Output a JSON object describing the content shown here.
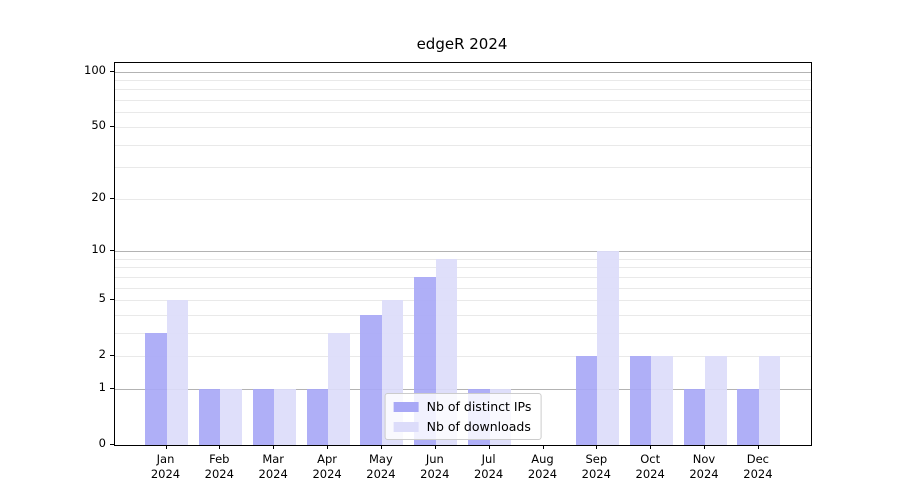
{
  "title": "edgeR 2024",
  "chart_data": {
    "type": "bar",
    "title": "edgeR 2024",
    "categories": [
      "Jan",
      "Feb",
      "Mar",
      "Apr",
      "May",
      "Jun",
      "Jul",
      "Aug",
      "Sep",
      "Oct",
      "Nov",
      "Dec"
    ],
    "category_year": "2024",
    "series": [
      {
        "name": "Nb of distinct IPs",
        "color": "#a8a8f6",
        "values": [
          3,
          1,
          1,
          1,
          4,
          7,
          1,
          0,
          2,
          2,
          1,
          1
        ]
      },
      {
        "name": "Nb of downloads",
        "color": "#dcdcfa",
        "values": [
          5,
          1,
          1,
          3,
          5,
          9,
          1,
          0,
          10,
          2,
          2,
          2
        ]
      }
    ],
    "yscale": "log1p",
    "ylim": [
      0,
      100
    ],
    "y_labeled_ticks": [
      0,
      1,
      2,
      5,
      10,
      20,
      50,
      100
    ],
    "y_major_gridlines": [
      1,
      10,
      100
    ],
    "y_minor_gridlines": [
      2,
      3,
      4,
      5,
      6,
      7,
      8,
      9,
      20,
      30,
      40,
      50,
      60,
      70,
      80,
      90
    ],
    "grid": true,
    "legend_position": "lower center"
  },
  "colors": {
    "axis": "#000000",
    "grid_major": "#b3b3b3",
    "grid_minor": "#e9e9e9",
    "background": "#ffffff",
    "legend_border": "#cccccc"
  }
}
